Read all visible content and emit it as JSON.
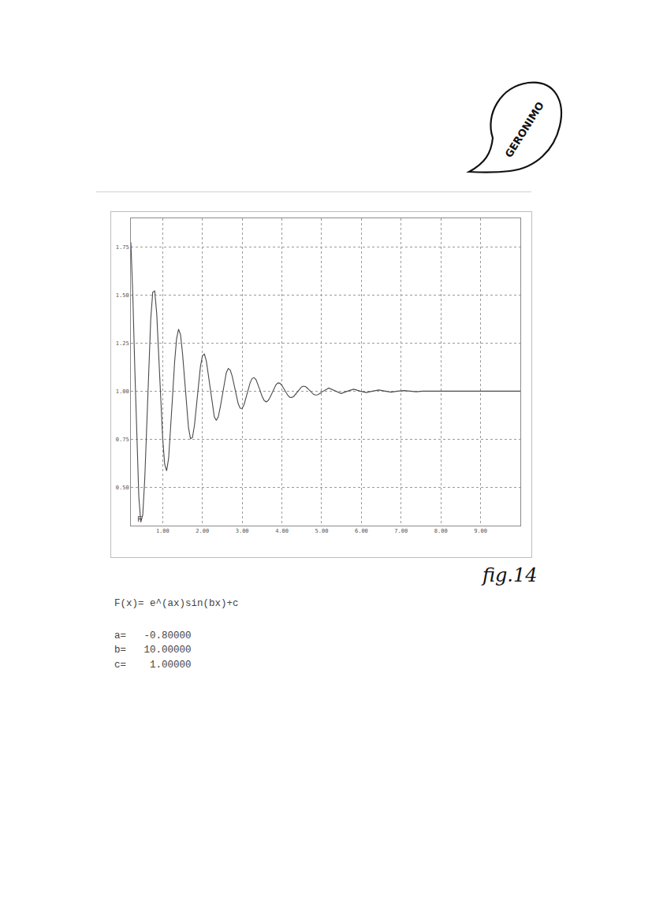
{
  "chart_data": {
    "type": "line",
    "series": [
      {
        "name": "F",
        "color": "#4a4a4a",
        "values": [
          1.775,
          1.49,
          1.111,
          0.735,
          0.45,
          0.318,
          0.357,
          0.546,
          0.827,
          1.128,
          1.375,
          1.515,
          1.522,
          1.405,
          1.201,
          0.965,
          0.756,
          0.62,
          0.585,
          0.651,
          0.795,
          0.976,
          1.149,
          1.273,
          1.323,
          1.293,
          1.196,
          1.06,
          0.92,
          0.81,
          0.753,
          0.759,
          0.822,
          0.922,
          1.033,
          1.127,
          1.184,
          1.193,
          1.156,
          1.084,
          0.998,
          0.919,
          0.866,
          0.848,
          0.867,
          0.917,
          0.982,
          1.047,
          1.095,
          1.118,
          1.11,
          1.078,
          1.029,
          0.977,
          0.935,
          0.911,
          0.91,
          0.931,
          0.966,
          1.007,
          1.043,
          1.066,
          1.071,
          1.06,
          1.035,
          1.004,
          0.974,
          0.953,
          0.944,
          0.95,
          0.967,
          0.99,
          1.014,
          1.033,
          1.043,
          1.041,
          1.03,
          1.013,
          0.994,
          0.978,
          0.968,
          0.967,
          0.973,
          0.986,
          1.001,
          1.014,
          1.023,
          1.026,
          1.023,
          1.014,
          1.003,
          0.992,
          0.983,
          0.98,
          0.981,
          0.987,
          0.995,
          1.016,
          1,
          0.988,
          1,
          1.01,
          1,
          0.993,
          1,
          1.006,
          1,
          0.995,
          1,
          1.003,
          1,
          0.997,
          1,
          1,
          1,
          1
        ]
      }
    ],
    "x": [
      0.2,
      0.25,
      0.3,
      0.35,
      0.4,
      0.45,
      0.5,
      0.55,
      0.6,
      0.65,
      0.7,
      0.75,
      0.8,
      0.85,
      0.9,
      0.95,
      1.0,
      1.05,
      1.1,
      1.15,
      1.2,
      1.25,
      1.3,
      1.35,
      1.4,
      1.45,
      1.5,
      1.55,
      1.6,
      1.65,
      1.7,
      1.75,
      1.8,
      1.85,
      1.9,
      1.95,
      2.0,
      2.05,
      2.1,
      2.15,
      2.2,
      2.25,
      2.3,
      2.35,
      2.4,
      2.45,
      2.5,
      2.55,
      2.6,
      2.65,
      2.7,
      2.75,
      2.8,
      2.85,
      2.9,
      2.95,
      3.0,
      3.05,
      3.1,
      3.15,
      3.2,
      3.25,
      3.3,
      3.35,
      3.4,
      3.45,
      3.5,
      3.55,
      3.6,
      3.65,
      3.7,
      3.75,
      3.8,
      3.85,
      3.9,
      3.95,
      4.0,
      4.05,
      4.1,
      4.15,
      4.2,
      4.25,
      4.3,
      4.35,
      4.4,
      4.45,
      4.5,
      4.55,
      4.6,
      4.65,
      4.7,
      4.75,
      4.8,
      4.85,
      4.9,
      4.95,
      5.0,
      5.18,
      5.34,
      5.49,
      5.65,
      5.81,
      5.97,
      6.12,
      6.28,
      6.44,
      6.6,
      6.75,
      6.91,
      7.07,
      7.23,
      7.38,
      7.54,
      8.0,
      9.0,
      10.0
    ],
    "xlim": [
      0.2,
      10
    ],
    "xticks": [
      {
        "value": 1,
        "label": "1.00"
      },
      {
        "value": 2,
        "label": "2.00"
      },
      {
        "value": 3,
        "label": "3.00"
      },
      {
        "value": 4,
        "label": "4.00"
      },
      {
        "value": 5,
        "label": "5.00"
      },
      {
        "value": 6,
        "label": "6.00"
      },
      {
        "value": 7,
        "label": "7.00"
      },
      {
        "value": 8,
        "label": "8.00"
      },
      {
        "value": 9,
        "label": "9.00"
      }
    ],
    "ylim": [
      0.3,
      1.9
    ],
    "yticks": [
      {
        "value": 0.5,
        "label": "0.50"
      },
      0.75,
      {
        "value": 1,
        "label": "1.00"
      },
      1.25,
      {
        "value": 1.5,
        "label": "1.50"
      },
      1.75
    ],
    "grid": true,
    "annotations": [
      "fig.14",
      "F(x)= e^(ax)sin(bx)+c",
      "a=   -0.80000",
      "b=   10.00000",
      "c=    1.00000",
      "GERONIMO"
    ]
  }
}
